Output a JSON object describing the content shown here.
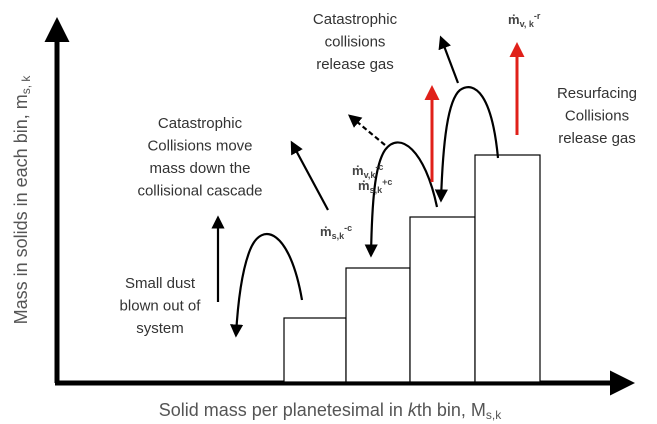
{
  "axes": {
    "y_label": {
      "text": "Mass in solids in each bin, m",
      "sub": "s, k"
    },
    "x_label": {
      "before": "Solid mass per planetesimal in ",
      "italic": "k",
      "after": "th bin, M",
      "sub": "s,k"
    }
  },
  "annotations": [
    {
      "lines": [
        "Catastrophic",
        "Collisions move",
        "mass down the",
        "collisional cascade"
      ]
    },
    {
      "lines": [
        "Small dust",
        "blown out of",
        "system"
      ]
    },
    {
      "lines": [
        "Catastrophic",
        "collisions",
        "release gas"
      ]
    },
    {
      "lines": [
        "Resurfacing",
        "Collisions",
        "release gas"
      ]
    }
  ],
  "rates": [
    {
      "symbol": "ṁ",
      "sub": "s,k",
      "sup": "-c"
    },
    {
      "symbol": "ṁ",
      "sub": "v,k",
      "sup": "-c"
    },
    {
      "symbol": "ṁ",
      "sub": "s,k",
      "sup": "+c"
    },
    {
      "symbol": "ṁ",
      "sub": "v, k",
      "sup": "-r"
    }
  ]
}
